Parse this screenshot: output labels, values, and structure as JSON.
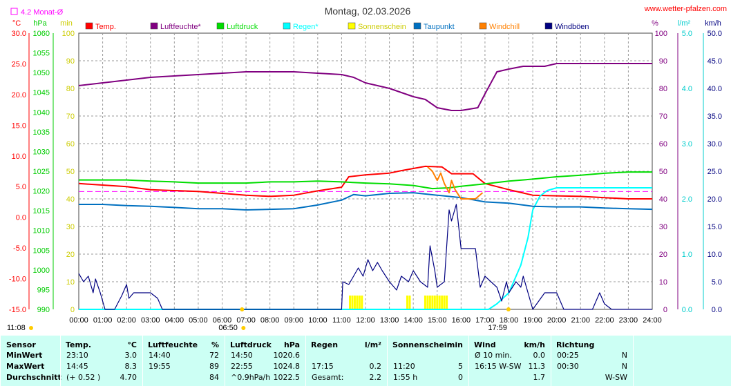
{
  "header": {
    "title": "Montag, 02.03.2026",
    "site": "www.wetter-pfalzen.com",
    "monthly_avg": "4.2 Monat-Ø"
  },
  "chart_data": {
    "type": "line",
    "title": "Montag, 02.03.2026",
    "x_ticks": [
      "00:00",
      "01:00",
      "02:00",
      "03:00",
      "04:00",
      "05:00",
      "06:00",
      "07:00",
      "08:00",
      "09:00",
      "10:00",
      "11:00",
      "12:00",
      "13:00",
      "14:00",
      "15:00",
      "16:00",
      "17:00",
      "18:00",
      "19:00",
      "20:00",
      "21:00",
      "22:00",
      "23:00",
      "24:00"
    ],
    "x_range_hours": [
      0,
      24
    ],
    "sunrise": "06:50",
    "sunset": "17:59",
    "daylength": "11:08",
    "monthly_avg_temp": 4.2,
    "grid": true,
    "axes": [
      {
        "name": "temp",
        "unit": "°C",
        "color": "#ff0000",
        "range": [
          -15,
          30
        ],
        "ticks": [
          "30.0",
          "25.0",
          "20.0",
          "15.0",
          "10.0",
          "5.0",
          "0.0",
          "-5.0",
          "-10.0",
          "-15.0"
        ]
      },
      {
        "name": "pressure",
        "unit": "hPa",
        "color": "#00cc00",
        "range": [
          990,
          1060
        ],
        "ticks": [
          "1060",
          "1055",
          "1050",
          "1045",
          "1040",
          "1035",
          "1030",
          "1025",
          "1020",
          "1015",
          "1010",
          "1005",
          "1000",
          "995",
          "990"
        ]
      },
      {
        "name": "sunshine",
        "unit": "min",
        "color": "#cccc00",
        "range": [
          0,
          100
        ],
        "ticks": [
          "100",
          "90",
          "80",
          "70",
          "60",
          "50",
          "40",
          "30",
          "20",
          "10",
          "0"
        ]
      },
      {
        "name": "humidity",
        "unit": "%",
        "color": "#800080",
        "range": [
          0,
          100
        ],
        "ticks": [
          "100",
          "90",
          "80",
          "70",
          "60",
          "50",
          "40",
          "30",
          "20",
          "10",
          "0"
        ]
      },
      {
        "name": "rain",
        "unit": "l/m²",
        "color": "#00ffff",
        "range": [
          0,
          5
        ],
        "ticks": [
          "5.0",
          "4.0",
          "3.0",
          "2.0",
          "1.0",
          "0.0"
        ]
      },
      {
        "name": "wind",
        "unit": "km/h",
        "color": "#000080",
        "range": [
          0,
          50
        ],
        "ticks": [
          "50.0",
          "45.0",
          "40.0",
          "35.0",
          "30.0",
          "25.0",
          "20.0",
          "15.0",
          "10.0",
          "5.0",
          "0.0"
        ]
      }
    ],
    "legend": [
      {
        "label": "Temp.",
        "color": "#ff0000"
      },
      {
        "label": "Luftfeuchte*",
        "color": "#800080"
      },
      {
        "label": "Luftdruck",
        "color": "#00dd00"
      },
      {
        "label": "Regen*",
        "color": "#00ffff"
      },
      {
        "label": "Sonnenschein",
        "color": "#ffff00"
      },
      {
        "label": "Taupunkt",
        "color": "#0070c0"
      },
      {
        "label": "Windchill",
        "color": "#ff8000"
      },
      {
        "label": "Windböen",
        "color": "#000080"
      }
    ],
    "series": [
      {
        "name": "Temp.",
        "axis": "temp",
        "color": "#ff0000",
        "points": [
          [
            0,
            5.5
          ],
          [
            2,
            5.0
          ],
          [
            3,
            4.5
          ],
          [
            5,
            4.2
          ],
          [
            7,
            3.6
          ],
          [
            8,
            3.4
          ],
          [
            9,
            3.6
          ],
          [
            10,
            4.3
          ],
          [
            11,
            4.9
          ],
          [
            11.3,
            6.6
          ],
          [
            12,
            6.9
          ],
          [
            13,
            7.2
          ],
          [
            13.5,
            7.6
          ],
          [
            14.5,
            8.3
          ],
          [
            15.2,
            8.2
          ],
          [
            15.6,
            7.1
          ],
          [
            16.5,
            7.1
          ],
          [
            17,
            5.5
          ],
          [
            18,
            4.5
          ],
          [
            19,
            3.6
          ],
          [
            20,
            3.5
          ],
          [
            21,
            3.4
          ],
          [
            22,
            3.2
          ],
          [
            23,
            3.0
          ],
          [
            24,
            3.0
          ]
        ]
      },
      {
        "name": "Luftfeuchte*",
        "axis": "humidity",
        "color": "#800080",
        "points": [
          [
            0,
            81
          ],
          [
            1,
            82
          ],
          [
            2,
            83
          ],
          [
            3,
            84
          ],
          [
            4,
            84.5
          ],
          [
            5,
            85
          ],
          [
            6,
            85.5
          ],
          [
            7,
            86
          ],
          [
            8,
            86
          ],
          [
            9,
            86
          ],
          [
            10,
            85.5
          ],
          [
            11,
            85
          ],
          [
            11.5,
            84
          ],
          [
            12,
            82
          ],
          [
            13,
            80
          ],
          [
            14,
            77
          ],
          [
            14.5,
            76
          ],
          [
            15,
            73
          ],
          [
            15.6,
            72
          ],
          [
            16,
            72
          ],
          [
            16.7,
            73
          ],
          [
            17,
            78
          ],
          [
            17.5,
            86
          ],
          [
            18,
            87
          ],
          [
            18.6,
            88
          ],
          [
            19.5,
            88
          ],
          [
            20,
            89
          ],
          [
            21,
            89
          ],
          [
            22,
            89
          ],
          [
            23,
            89
          ],
          [
            24,
            89
          ]
        ]
      },
      {
        "name": "Luftdruck",
        "axis": "pressure",
        "color": "#00dd00",
        "points": [
          [
            0,
            1022.8
          ],
          [
            1,
            1022.8
          ],
          [
            2,
            1022.8
          ],
          [
            3,
            1022.5
          ],
          [
            4,
            1022.3
          ],
          [
            5,
            1022.0
          ],
          [
            6,
            1022.0
          ],
          [
            7,
            1022.0
          ],
          [
            8,
            1022.3
          ],
          [
            9,
            1022.3
          ],
          [
            10,
            1022.5
          ],
          [
            11,
            1022.3
          ],
          [
            12,
            1022.0
          ],
          [
            13,
            1021.8
          ],
          [
            14,
            1021.4
          ],
          [
            14.8,
            1020.6
          ],
          [
            15.5,
            1020.8
          ],
          [
            16,
            1021.2
          ],
          [
            17,
            1021.8
          ],
          [
            18,
            1022.5
          ],
          [
            19,
            1023.0
          ],
          [
            20,
            1023.6
          ],
          [
            21,
            1024.0
          ],
          [
            22,
            1024.5
          ],
          [
            23,
            1024.8
          ],
          [
            24,
            1024.8
          ]
        ]
      },
      {
        "name": "Regen*",
        "axis": "rain",
        "color": "#00ffff",
        "points": [
          [
            0,
            0
          ],
          [
            17.15,
            0
          ],
          [
            17.5,
            0.1
          ],
          [
            18,
            0.3
          ],
          [
            18.5,
            0.8
          ],
          [
            18.8,
            1.3
          ],
          [
            19,
            1.8
          ],
          [
            19.3,
            2.05
          ],
          [
            19.6,
            2.15
          ],
          [
            20,
            2.2
          ],
          [
            24,
            2.2
          ]
        ]
      },
      {
        "name": "Taupunkt",
        "axis": "temp",
        "color": "#0070c0",
        "points": [
          [
            0,
            2.1
          ],
          [
            1,
            2.1
          ],
          [
            2,
            1.9
          ],
          [
            3,
            1.8
          ],
          [
            4,
            1.6
          ],
          [
            5,
            1.4
          ],
          [
            6,
            1.4
          ],
          [
            7,
            1.2
          ],
          [
            8,
            1.3
          ],
          [
            9,
            1.4
          ],
          [
            10,
            2.0
          ],
          [
            11,
            2.8
          ],
          [
            11.5,
            3.7
          ],
          [
            12,
            3.5
          ],
          [
            13,
            3.9
          ],
          [
            14,
            4.0
          ],
          [
            15,
            3.6
          ],
          [
            16,
            3.2
          ],
          [
            17,
            2.5
          ],
          [
            18,
            2.3
          ],
          [
            19,
            1.8
          ],
          [
            20,
            1.7
          ],
          [
            21,
            1.7
          ],
          [
            22,
            1.5
          ],
          [
            23,
            1.4
          ],
          [
            24,
            1.3
          ]
        ]
      },
      {
        "name": "Windchill",
        "axis": "temp",
        "color": "#ff8000",
        "points": [
          [
            14.6,
            8.2
          ],
          [
            14.8,
            7.5
          ],
          [
            15,
            6.0
          ],
          [
            15.15,
            7.2
          ],
          [
            15.3,
            5.5
          ],
          [
            15.5,
            4.0
          ],
          [
            15.6,
            6.0
          ],
          [
            15.75,
            4.5
          ],
          [
            16,
            3.0
          ],
          [
            16.6,
            3.0
          ],
          [
            16.9,
            4.0
          ]
        ]
      },
      {
        "name": "Windböen",
        "axis": "wind",
        "color": "#000080",
        "points": [
          [
            0,
            6.5
          ],
          [
            0.2,
            5
          ],
          [
            0.4,
            6
          ],
          [
            0.6,
            3
          ],
          [
            0.7,
            5.5
          ],
          [
            0.9,
            3
          ],
          [
            1.1,
            0
          ],
          [
            1.5,
            0
          ],
          [
            1.8,
            2.5
          ],
          [
            2.0,
            4.5
          ],
          [
            2.1,
            2
          ],
          [
            2.3,
            3
          ],
          [
            2.5,
            3
          ],
          [
            3.0,
            3
          ],
          [
            3.3,
            2
          ],
          [
            3.5,
            0
          ],
          [
            11.0,
            0
          ],
          [
            11.05,
            5
          ],
          [
            11.3,
            4.5
          ],
          [
            11.5,
            6
          ],
          [
            11.7,
            7.5
          ],
          [
            11.9,
            6
          ],
          [
            12.1,
            9
          ],
          [
            12.3,
            7
          ],
          [
            12.5,
            8.5
          ],
          [
            12.7,
            7
          ],
          [
            13,
            5
          ],
          [
            13.3,
            3.5
          ],
          [
            13.5,
            6
          ],
          [
            13.8,
            5
          ],
          [
            14,
            7
          ],
          [
            14.3,
            5
          ],
          [
            14.6,
            4
          ],
          [
            14.7,
            11.5
          ],
          [
            14.9,
            7
          ],
          [
            15,
            4.0
          ],
          [
            15.3,
            5
          ],
          [
            15.5,
            18
          ],
          [
            15.6,
            16
          ],
          [
            15.8,
            19
          ],
          [
            16,
            11
          ],
          [
            16.3,
            11
          ],
          [
            16.6,
            11
          ],
          [
            16.8,
            4
          ],
          [
            17,
            6
          ],
          [
            17.5,
            4
          ],
          [
            17.7,
            1.5
          ],
          [
            17.9,
            5
          ],
          [
            18,
            3
          ],
          [
            18.3,
            5
          ],
          [
            18.5,
            4
          ],
          [
            18.6,
            6
          ],
          [
            18.8,
            3
          ],
          [
            19,
            0
          ],
          [
            19.5,
            3
          ],
          [
            20,
            3
          ],
          [
            20.3,
            0
          ],
          [
            21.5,
            0
          ],
          [
            21.8,
            3
          ],
          [
            22,
            1
          ],
          [
            22.3,
            0
          ],
          [
            24,
            0
          ]
        ]
      }
    ],
    "sunshine_bars": [
      [
        11.35,
        5
      ],
      [
        11.45,
        5
      ],
      [
        11.55,
        5
      ],
      [
        11.65,
        5
      ],
      [
        11.75,
        5
      ],
      [
        11.85,
        5
      ],
      [
        13.75,
        5
      ],
      [
        13.85,
        5
      ],
      [
        14.5,
        5
      ],
      [
        14.6,
        5
      ],
      [
        14.7,
        5
      ],
      [
        14.8,
        5
      ],
      [
        14.9,
        5
      ],
      [
        15.0,
        5
      ],
      [
        15.1,
        5
      ],
      [
        15.2,
        5
      ],
      [
        15.3,
        5
      ],
      [
        15.4,
        5
      ]
    ]
  },
  "footer": {
    "sensor": {
      "header": "Sensor",
      "rows": [
        "MinWert",
        "MaxWert",
        "Durchschnitt"
      ]
    },
    "temp": {
      "header": "Temp.",
      "unit": "°C",
      "rows": [
        [
          "23:10",
          "3.0"
        ],
        [
          "14:45",
          "8.3"
        ],
        [
          "(+ 0.52 )",
          "4.70"
        ]
      ]
    },
    "humidity": {
      "header": "Luftfeuchte",
      "unit": "%",
      "rows": [
        [
          "14:40",
          "72"
        ],
        [
          "19:55",
          "89"
        ],
        [
          "",
          "84"
        ]
      ]
    },
    "pressure": {
      "header": "Luftdruck",
      "unit": "hPa",
      "rows": [
        [
          "14:50",
          "1020.6"
        ],
        [
          "22:55",
          "1024.8"
        ],
        [
          "^0.9hPa/h",
          "1022.5"
        ]
      ]
    },
    "rain": {
      "header": "Regen",
      "unit": "l/m²",
      "rows": [
        [
          "",
          ""
        ],
        [
          "17:15",
          "0.2"
        ],
        [
          "Gesamt:",
          "2.2"
        ]
      ]
    },
    "sunshine": {
      "header": "Sonnenschein",
      "unit": "min",
      "rows": [
        [
          "",
          ""
        ],
        [
          "11:20",
          "5"
        ],
        [
          "1:55 h",
          "0"
        ]
      ]
    },
    "wind": {
      "header": "Wind",
      "unit": "km/h",
      "rows": [
        [
          "Ø 10 min.",
          "0.0"
        ],
        [
          "16:15   W-SW",
          "11.3"
        ],
        [
          "",
          "1.7"
        ]
      ]
    },
    "direction": {
      "header": "Richtung",
      "rows": [
        [
          "00:25",
          "N"
        ],
        [
          "00:30",
          "N"
        ],
        [
          "",
          "W-SW"
        ]
      ]
    }
  }
}
